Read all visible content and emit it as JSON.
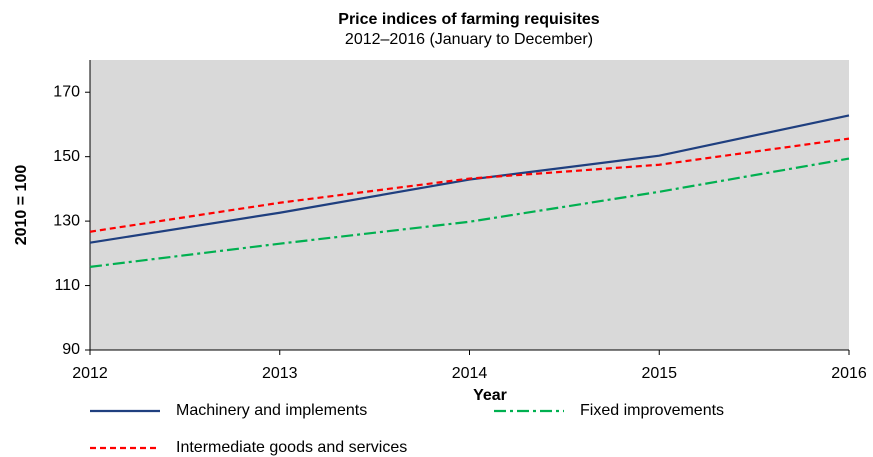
{
  "chart_data": {
    "type": "line",
    "title": "Price indices of farming requisites",
    "subtitle": "2012–2016 (January to December)",
    "x_label": "Year",
    "y_label": "2010 = 100",
    "x": [
      2012,
      2013,
      2014,
      2015,
      2016
    ],
    "xlim": [
      2012,
      2016
    ],
    "xticks": [
      2012,
      2013,
      2014,
      2015,
      2016
    ],
    "ylim": [
      90,
      180
    ],
    "yticks": [
      90,
      110,
      130,
      150,
      170
    ],
    "grid": false,
    "legend": "bottom",
    "background": "#d9d9d9",
    "series": [
      {
        "name": "Machinery and implements",
        "color": "#1f3f7f",
        "style": "solid",
        "values": [
          123.3,
          132.6,
          142.9,
          150.3,
          162.8
        ]
      },
      {
        "name": "Fixed improvements",
        "color": "#00b050",
        "style": "dashdot",
        "values": [
          115.8,
          123.0,
          129.8,
          139.1,
          149.4
        ]
      },
      {
        "name": "Intermediate goods and services",
        "color": "#ff0000",
        "style": "dashed",
        "values": [
          126.7,
          135.7,
          143.2,
          147.5,
          155.6
        ]
      }
    ]
  }
}
